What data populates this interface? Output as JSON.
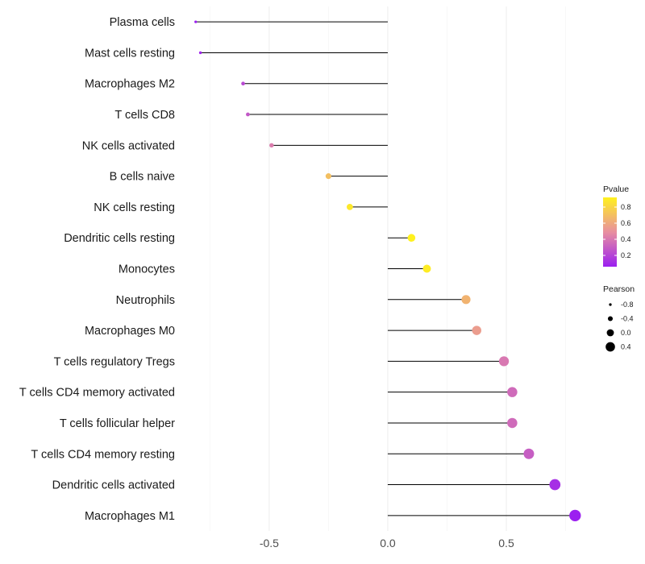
{
  "chart_data": {
    "type": "lollipop",
    "title": "",
    "xlabel": "",
    "ylabel": "",
    "xlim": [
      -0.86,
      0.84
    ],
    "x_ticks": [
      -0.5,
      0.0,
      0.5
    ],
    "x_tick_labels": [
      "-0.5",
      "0.0",
      "0.5"
    ],
    "grid": true,
    "categories": [
      "Plasma cells",
      "Mast cells resting",
      "Macrophages M2",
      "T cells CD8",
      "NK cells activated",
      "B cells naive",
      "NK cells resting",
      "Dendritic cells resting",
      "Monocytes",
      "Neutrophils",
      "Macrophages M0",
      "T cells regulatory  Tregs ",
      "T cells CD4 memory activated",
      "T cells follicular helper",
      "T cells CD4 memory resting",
      "Dendritic cells activated",
      "Macrophages M1"
    ],
    "pearson": [
      -0.81,
      -0.79,
      -0.61,
      -0.59,
      -0.49,
      -0.25,
      -0.16,
      0.1,
      0.165,
      0.33,
      0.375,
      0.49,
      0.525,
      0.525,
      0.595,
      0.705,
      0.79
    ],
    "pvalue": [
      0.05,
      0.08,
      0.22,
      0.28,
      0.42,
      0.7,
      0.88,
      0.95,
      0.9,
      0.65,
      0.55,
      0.4,
      0.35,
      0.35,
      0.3,
      0.12,
      0.04
    ],
    "legend": {
      "color_title": "Pvalue",
      "color_ticks": [
        "0.8",
        "0.6",
        "0.4",
        "0.2"
      ],
      "color_tick_values": [
        0.8,
        0.6,
        0.4,
        0.2
      ],
      "color_range": [
        0.06,
        0.92
      ],
      "size_title": "Pearson",
      "size_labels": [
        "-0.8",
        "-0.4",
        "0.0",
        "0.4"
      ],
      "size_values": [
        -0.8,
        -0.4,
        0.0,
        0.4
      ],
      "low_color": "#9b1ff0",
      "mid_color": "#e88fa0",
      "high_color": "#fff11e",
      "point_color": "#000000"
    }
  }
}
